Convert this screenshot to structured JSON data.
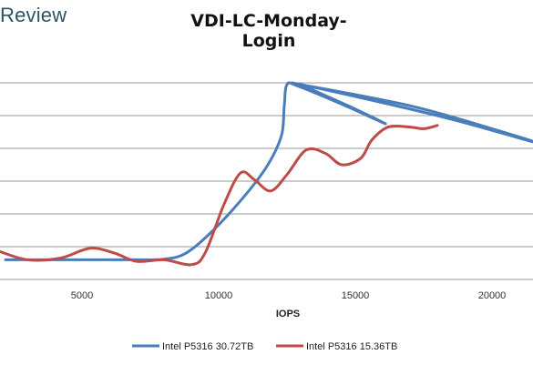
{
  "brand": "Review",
  "chart_data": {
    "type": "scatter",
    "title": "VDI-LC-Monday-Login",
    "xlabel": "IOPS",
    "ylabel": "",
    "xlim": [
      2000,
      21500
    ],
    "x_ticks": [
      5000,
      10000,
      15000,
      20000
    ],
    "grid": true,
    "legend": "bottom",
    "series": [
      {
        "name": "Intel P5316 30.72TB",
        "color": "#4a7ebb",
        "points": [
          [
            2200,
            0.6
          ],
          [
            5000,
            0.6
          ],
          [
            7000,
            0.6
          ],
          [
            8000,
            0.62
          ],
          [
            8800,
            0.8
          ],
          [
            9800,
            1.5
          ],
          [
            11000,
            2.6
          ],
          [
            11800,
            3.5
          ],
          [
            12300,
            4.4
          ],
          [
            12400,
            5.3
          ],
          [
            12500,
            5.95
          ],
          [
            12900,
            5.9
          ],
          [
            14500,
            5.35
          ],
          [
            16100,
            4.75
          ],
          [
            15000,
            5.2
          ],
          [
            13400,
            5.8
          ],
          [
            13000,
            5.95
          ],
          [
            18000,
            5.0
          ],
          [
            21500,
            4.2
          ],
          [
            20000,
            4.6
          ],
          [
            17000,
            5.3
          ],
          [
            13000,
            5.95
          ]
        ]
      },
      {
        "name": "Intel P5316 15.36TB",
        "color": "#be4b48",
        "points": [
          [
            2000,
            0.85
          ],
          [
            3000,
            0.6
          ],
          [
            4200,
            0.65
          ],
          [
            5300,
            0.95
          ],
          [
            6200,
            0.8
          ],
          [
            7000,
            0.55
          ],
          [
            8000,
            0.6
          ],
          [
            9000,
            0.45
          ],
          [
            9500,
            0.8
          ],
          [
            10200,
            2.3
          ],
          [
            10800,
            3.25
          ],
          [
            11300,
            3.05
          ],
          [
            11900,
            2.7
          ],
          [
            12500,
            3.2
          ],
          [
            13200,
            3.95
          ],
          [
            13900,
            3.85
          ],
          [
            14500,
            3.5
          ],
          [
            15200,
            3.7
          ],
          [
            15600,
            4.25
          ],
          [
            16200,
            4.65
          ],
          [
            17000,
            4.65
          ],
          [
            17500,
            4.6
          ],
          [
            18000,
            4.7
          ]
        ]
      }
    ]
  }
}
